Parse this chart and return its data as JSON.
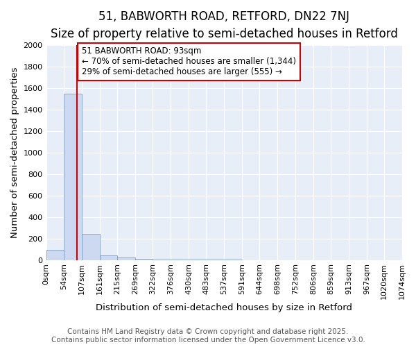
{
  "title_line1": "51, BABWORTH ROAD, RETFORD, DN22 7NJ",
  "title_line2": "Size of property relative to semi-detached houses in Retford",
  "xlabel": "Distribution of semi-detached houses by size in Retford",
  "ylabel": "Number of semi-detached properties",
  "bar_heights": [
    95,
    1550,
    240,
    40,
    25,
    8,
    3,
    2,
    1,
    1,
    1,
    0,
    0,
    0,
    0,
    0,
    0,
    0,
    0,
    0
  ],
  "bin_edges": [
    0,
    54,
    107,
    161,
    215,
    269,
    322,
    376,
    430,
    483,
    537,
    591,
    644,
    698,
    752,
    806,
    859,
    913,
    967,
    1020,
    1074
  ],
  "tick_labels": [
    "0sqm",
    "54sqm",
    "107sqm",
    "161sqm",
    "215sqm",
    "269sqm",
    "322sqm",
    "376sqm",
    "430sqm",
    "483sqm",
    "537sqm",
    "591sqm",
    "644sqm",
    "698sqm",
    "752sqm",
    "806sqm",
    "859sqm",
    "913sqm",
    "967sqm",
    "1020sqm",
    "1074sqm"
  ],
  "property_size": 93,
  "annotation_title": "51 BABWORTH ROAD: 93sqm",
  "annotation_line1": "← 70% of semi-detached houses are smaller (1,344)",
  "annotation_line2": "29% of semi-detached houses are larger (555) →",
  "bar_color": "#ccd9f0",
  "bar_edge_color": "#7090b8",
  "red_line_color": "#cc0000",
  "annotation_box_color": "#cc0000",
  "background_color": "#e8eef8",
  "ylim": [
    0,
    2000
  ],
  "yticks": [
    0,
    200,
    400,
    600,
    800,
    1000,
    1200,
    1400,
    1600,
    1800,
    2000
  ],
  "footer_line1": "Contains HM Land Registry data © Crown copyright and database right 2025.",
  "footer_line2": "Contains public sector information licensed under the Open Government Licence v3.0.",
  "title_fontsize": 12,
  "subtitle_fontsize": 10,
  "axis_label_fontsize": 9.5,
  "tick_fontsize": 8,
  "annotation_fontsize": 8.5,
  "footer_fontsize": 7.5
}
